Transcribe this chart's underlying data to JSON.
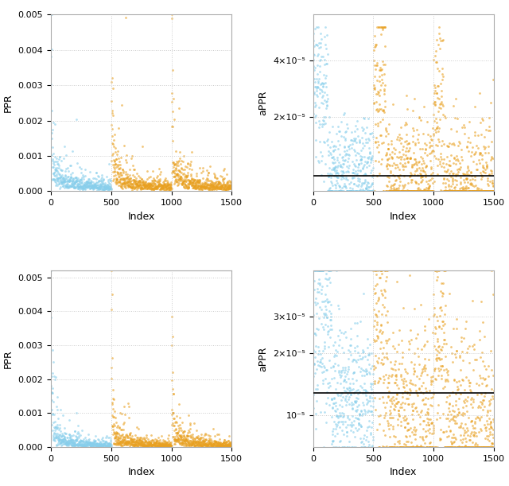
{
  "blue_color": "#87CEEB",
  "orange_color": "#E8A020",
  "black_color": "#000000",
  "background_color": "#FFFFFF",
  "grid_color": "#CCCCCC",
  "axis_border_color": "#AAAAAA",
  "n_per_block": 500,
  "top_left": {
    "ylabel": "PPR",
    "xlabel": "Index",
    "ylim": [
      0,
      0.005
    ],
    "yticks": [
      0.0,
      0.001,
      0.002,
      0.003,
      0.004,
      0.005
    ]
  },
  "top_right": {
    "ylabel": "aPPR",
    "xlabel": "Index"
  },
  "bot_left": {
    "ylabel": "PPR",
    "xlabel": "Index",
    "ylim": [
      0,
      0.0052
    ],
    "yticks": [
      0.0,
      0.001,
      0.002,
      0.003,
      0.004,
      0.005
    ]
  },
  "bot_right": {
    "ylabel": "aPPR",
    "xlabel": "Index"
  },
  "point_size": 4,
  "alpha": 0.6
}
